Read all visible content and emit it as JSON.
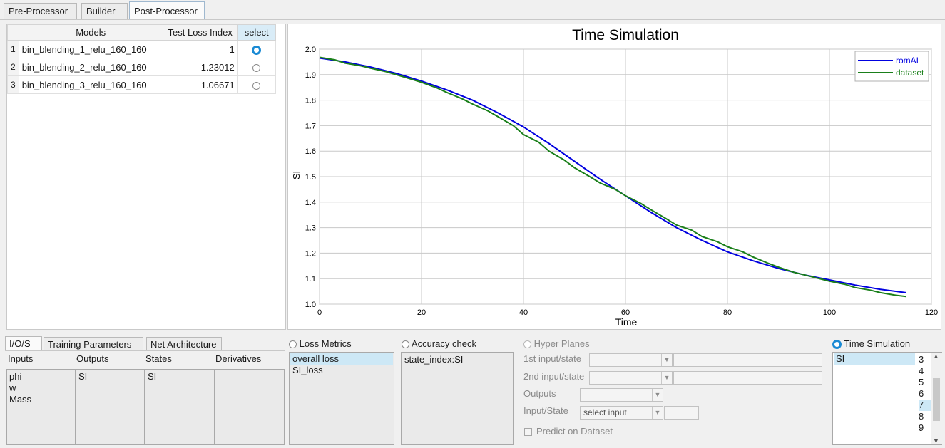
{
  "tabs": [
    "Pre-Processor",
    "Builder",
    "Post-Processor"
  ],
  "models_table": {
    "headers": [
      "Models",
      "Test Loss Index",
      "select"
    ],
    "rows": [
      {
        "num": "1",
        "model": "bin_blending_1_relu_160_160",
        "loss": "1",
        "selected": true
      },
      {
        "num": "2",
        "model": "bin_blending_2_relu_160_160",
        "loss": "1.23012",
        "selected": false
      },
      {
        "num": "3",
        "model": "bin_blending_3_relu_160_160",
        "loss": "1.06671",
        "selected": false
      }
    ]
  },
  "chart_data": {
    "type": "line",
    "title": "Time Simulation",
    "xlabel": "Time",
    "ylabel": "SI",
    "xlim": [
      0,
      120
    ],
    "ylim": [
      1.0,
      2.0
    ],
    "xticks": [
      "0",
      "20",
      "40",
      "60",
      "80",
      "100",
      "120"
    ],
    "yticks": [
      "1.0",
      "1.1",
      "1.2",
      "1.3",
      "1.4",
      "1.5",
      "1.6",
      "1.7",
      "1.8",
      "1.9",
      "2.0"
    ],
    "grid": true,
    "legend_position": "top-right",
    "series": [
      {
        "name": "romAI",
        "color": "#0000e0",
        "x": [
          0,
          5,
          10,
          15,
          20,
          25,
          30,
          35,
          40,
          45,
          50,
          55,
          60,
          65,
          70,
          75,
          80,
          85,
          90,
          95,
          100,
          105,
          110,
          115
        ],
        "y": [
          1.965,
          1.95,
          1.93,
          1.905,
          1.875,
          1.84,
          1.8,
          1.75,
          1.695,
          1.63,
          1.56,
          1.49,
          1.425,
          1.36,
          1.3,
          1.25,
          1.205,
          1.17,
          1.14,
          1.115,
          1.095,
          1.075,
          1.058,
          1.045
        ]
      },
      {
        "name": "dataset",
        "color": "#1a7f1a",
        "x": [
          0,
          3,
          5,
          8,
          10,
          13,
          15,
          18,
          20,
          23,
          25,
          28,
          30,
          33,
          35,
          38,
          40,
          43,
          45,
          48,
          50,
          53,
          55,
          58,
          60,
          63,
          65,
          68,
          70,
          73,
          75,
          78,
          80,
          83,
          85,
          88,
          90,
          93,
          95,
          98,
          100,
          103,
          105,
          108,
          110,
          113,
          115
        ],
        "y": [
          1.968,
          1.958,
          1.945,
          1.935,
          1.925,
          1.912,
          1.9,
          1.882,
          1.87,
          1.848,
          1.83,
          1.805,
          1.785,
          1.758,
          1.735,
          1.7,
          1.665,
          1.635,
          1.6,
          1.565,
          1.535,
          1.5,
          1.475,
          1.45,
          1.425,
          1.395,
          1.37,
          1.335,
          1.31,
          1.29,
          1.265,
          1.245,
          1.225,
          1.205,
          1.185,
          1.16,
          1.145,
          1.125,
          1.115,
          1.1,
          1.09,
          1.078,
          1.065,
          1.055,
          1.045,
          1.035,
          1.03
        ]
      }
    ]
  },
  "bottom_tabs": [
    "I/O/S",
    "Training Parameters",
    "Net Architecture"
  ],
  "ios": {
    "headers": [
      "Inputs",
      "Outputs",
      "States",
      "Derivatives"
    ],
    "inputs": [
      "phi",
      "w",
      "Mass"
    ],
    "outputs": [
      "SI"
    ],
    "states": [
      "SI"
    ],
    "derivatives": []
  },
  "loss_metrics": {
    "label": "Loss Metrics",
    "items": [
      "overall loss",
      "SI_loss"
    ]
  },
  "accuracy_check": {
    "label": "Accuracy check",
    "items": [
      "state_index:SI"
    ]
  },
  "hyper_planes": {
    "label": "Hyper Planes",
    "first_label": "1st input/state",
    "second_label": "2nd input/state",
    "outputs_label": "Outputs",
    "input_state_label": "Input/State",
    "select_placeholder": "select input",
    "predict_label": "Predict on Dataset"
  },
  "time_simulation": {
    "label": "Time Simulation",
    "items": [
      "SI"
    ],
    "numbers": [
      "3",
      "4",
      "5",
      "6",
      "7",
      "8",
      "9"
    ],
    "selected_number": "7"
  },
  "colors": {
    "accent": "#1a8ad4",
    "selection": "#cde8f6"
  }
}
